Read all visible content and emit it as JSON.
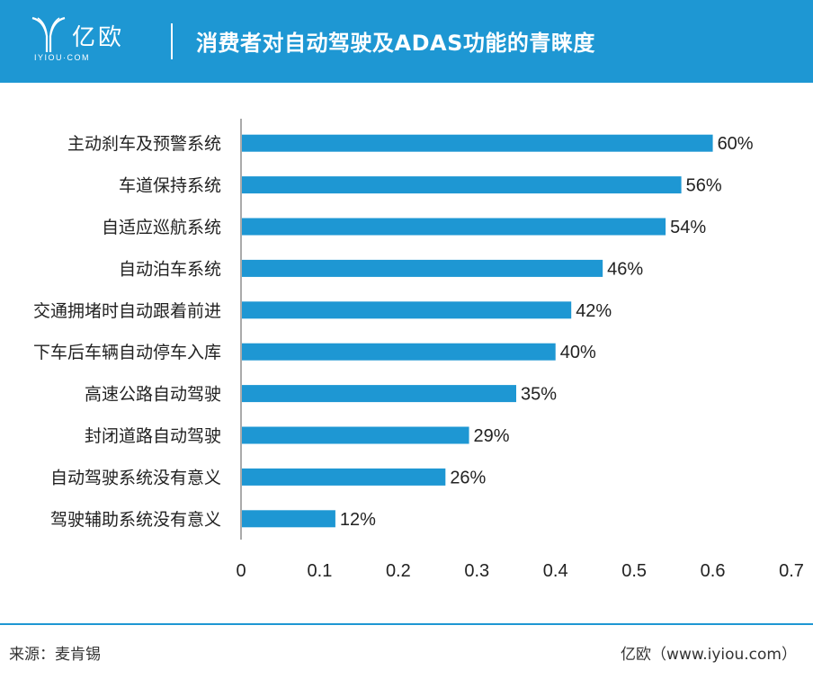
{
  "header": {
    "logo_cn": "亿欧",
    "logo_en": "IYIOU·COM",
    "logo_icon": "yiou-logo-icon",
    "title": "消费者对自动驾驶及ADAS功能的青睐度",
    "background_color": "#1e97d3"
  },
  "chart_data": {
    "type": "bar",
    "orientation": "horizontal",
    "categories": [
      "主动刹车及预警系统",
      "车道保持系统",
      "自适应巡航系统",
      "自动泊车系统",
      "交通拥堵时自动跟着前进",
      "下车后车辆自动停车入库",
      "高速公路自动驾驶",
      "封闭道路自动驾驶",
      "自动驾驶系统没有意义",
      "驾驶辅助系统没有意义"
    ],
    "values": [
      0.6,
      0.56,
      0.54,
      0.46,
      0.42,
      0.4,
      0.35,
      0.29,
      0.26,
      0.12
    ],
    "data_labels": [
      "60%",
      "56%",
      "54%",
      "46%",
      "42%",
      "40%",
      "35%",
      "29%",
      "26%",
      "12%"
    ],
    "x_ticks": [
      "0",
      "0.1",
      "0.2",
      "0.3",
      "0.4",
      "0.5",
      "0.6",
      "0.7"
    ],
    "xlim": [
      0,
      0.7
    ],
    "bar_color": "#1e97d3",
    "grid": false
  },
  "footer": {
    "source": "来源：麦肯锡",
    "credit": "亿欧（www.iyiou.com）",
    "line_color": "#1e97d3"
  }
}
